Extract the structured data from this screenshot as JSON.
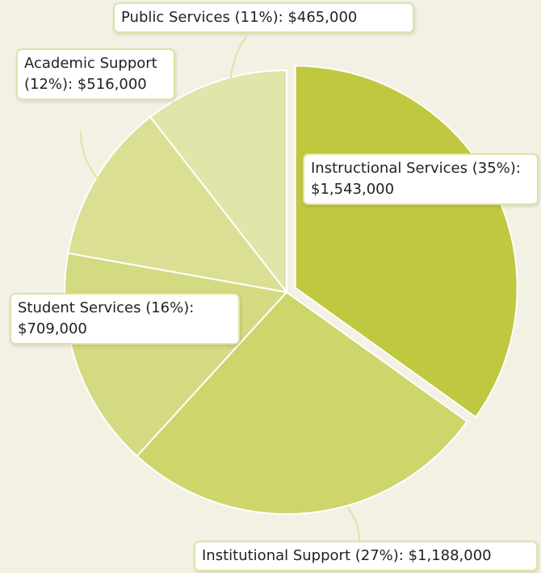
{
  "chart_data": {
    "type": "pie",
    "values": [
      1543000,
      1188000,
      709000,
      516000,
      465000
    ],
    "value_labels": [
      "Instructional Services (35%): $1,543,000",
      "Institutional Support (27%): $1,188,000",
      "Student Services (16%): $709,000",
      "Academic Support (12%): $516,000",
      "Public Services (11%): $465,000"
    ],
    "colors": [
      "#bfc83f",
      "#cdd56b",
      "#d4da82",
      "#dadf94",
      "#e1e5aa"
    ]
  }
}
